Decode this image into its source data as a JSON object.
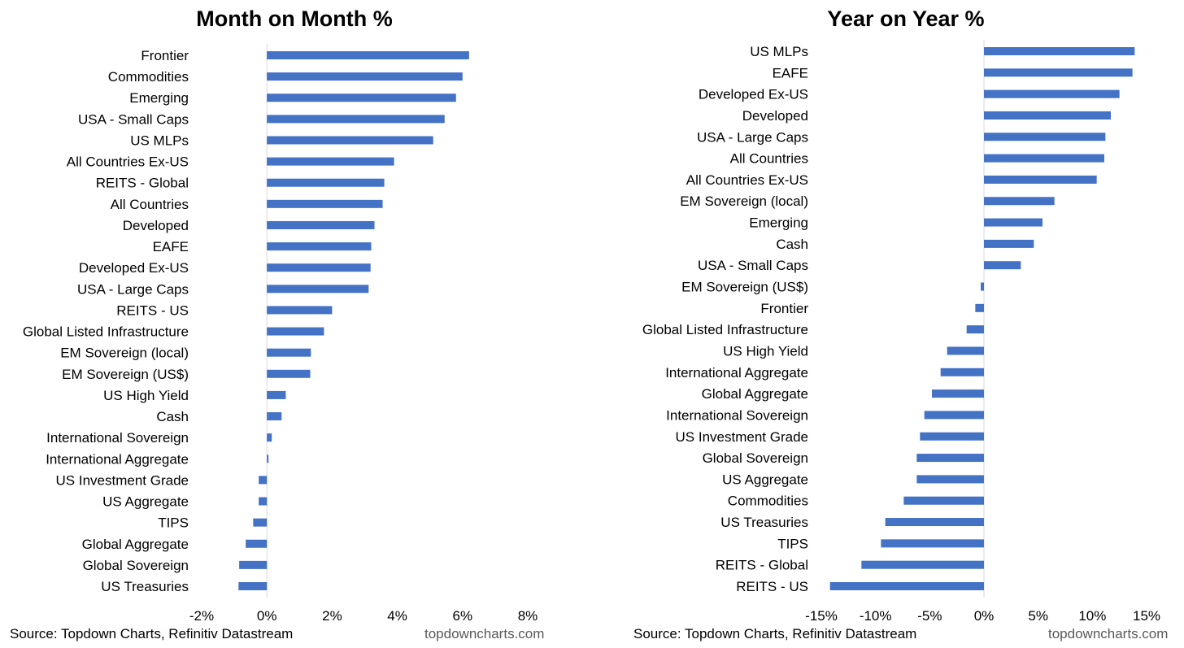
{
  "chart_data": [
    {
      "type": "bar",
      "orientation": "horizontal",
      "title": "Month on Month %",
      "categories": [
        "Frontier",
        "Commodities",
        "Emerging",
        "USA - Small Caps",
        "US MLPs",
        "All Countries Ex-US",
        "REITS - Global",
        "All Countries",
        "Developed",
        "EAFE",
        "Developed Ex-US",
        "USA - Large Caps",
        "REITS - US",
        "Global Listed Infrastructure",
        "EM Sovereign (local)",
        "EM Sovereign (US$)",
        "US High Yield",
        "Cash",
        "International Sovereign",
        "International Aggregate",
        "US Investment Grade",
        "US Aggregate",
        "TIPS",
        "Global Aggregate",
        "Global Sovereign",
        "US Treasuries"
      ],
      "values": [
        6.2,
        6.0,
        5.8,
        5.45,
        5.1,
        3.9,
        3.6,
        3.55,
        3.3,
        3.2,
        3.18,
        3.12,
        2.0,
        1.75,
        1.35,
        1.33,
        0.58,
        0.45,
        0.15,
        0.05,
        -0.25,
        -0.25,
        -0.42,
        -0.65,
        -0.85,
        -0.87
      ],
      "xlim": [
        -2,
        8
      ],
      "xticks": [
        "-2%",
        "0%",
        "2%",
        "4%",
        "6%",
        "8%"
      ],
      "xtick_values": [
        -2,
        0,
        2,
        4,
        6,
        8
      ],
      "color": "#4472C4",
      "source": "Source: Topdown Charts, Refinitiv Datastream",
      "website": "topdowncharts.com"
    },
    {
      "type": "bar",
      "orientation": "horizontal",
      "title": "Year on Year %",
      "categories": [
        "US MLPs",
        "EAFE",
        "Developed Ex-US",
        "Developed",
        "USA - Large Caps",
        "All Countries",
        "All Countries Ex-US",
        "EM Sovereign (local)",
        "Emerging",
        "Cash",
        "USA - Small Caps",
        "EM Sovereign (US$)",
        "Frontier",
        "Global Listed Infrastructure",
        "US High Yield",
        "International Aggregate",
        "Global Aggregate",
        "International Sovereign",
        "US Investment Grade",
        "Global Sovereign",
        "US Aggregate",
        "Commodities",
        "US Treasuries",
        "TIPS",
        "REITS - Global",
        "REITS - US"
      ],
      "values": [
        13.9,
        13.7,
        12.5,
        11.7,
        11.2,
        11.1,
        10.4,
        6.5,
        5.4,
        4.6,
        3.4,
        -0.3,
        -0.8,
        -1.6,
        -3.4,
        -4.0,
        -4.8,
        -5.5,
        -5.9,
        -6.2,
        -6.2,
        -7.4,
        -9.1,
        -9.5,
        -11.3,
        -14.2
      ],
      "xlim": [
        -15,
        15
      ],
      "xticks": [
        "-15%",
        "-10%",
        "-5%",
        "0%",
        "5%",
        "10%",
        "15%"
      ],
      "xtick_values": [
        -15,
        -10,
        -5,
        0,
        5,
        10,
        15
      ],
      "color": "#4472C4",
      "source": "Source: Topdown Charts, Refinitiv Datastream",
      "website": "topdowncharts.com"
    }
  ]
}
